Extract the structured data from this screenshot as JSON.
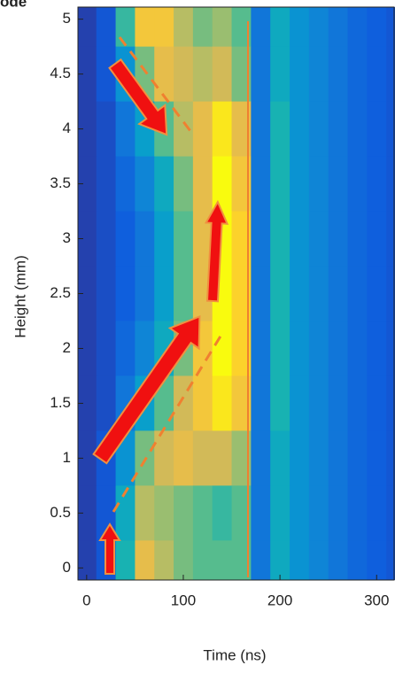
{
  "chart_data": {
    "type": "heatmap",
    "title": "ode",
    "xlabel": "Time (ns)",
    "ylabel": "Height (mm)",
    "x": [
      0,
      20,
      40,
      60,
      80,
      100,
      120,
      140,
      160,
      180,
      200,
      220,
      240,
      260,
      280,
      300,
      320
    ],
    "y": [
      5,
      4.5,
      4,
      3.5,
      3,
      2.5,
      2,
      1.5,
      1,
      0.5,
      0
    ],
    "z": [
      [
        0.05,
        0.1,
        0.5,
        0.85,
        0.85,
        0.7,
        0.6,
        0.65,
        0.55,
        0.2,
        0.4,
        0.3,
        0.25,
        0.2,
        0.15,
        0.12,
        0.1
      ],
      [
        0.05,
        0.1,
        0.3,
        0.6,
        0.8,
        0.75,
        0.7,
        0.75,
        0.6,
        0.2,
        0.4,
        0.3,
        0.25,
        0.2,
        0.15,
        0.12,
        0.1
      ],
      [
        0.05,
        0.08,
        0.2,
        0.35,
        0.55,
        0.7,
        0.8,
        0.95,
        0.8,
        0.2,
        0.45,
        0.3,
        0.25,
        0.2,
        0.15,
        0.12,
        0.1
      ],
      [
        0.05,
        0.08,
        0.15,
        0.25,
        0.4,
        0.6,
        0.8,
        1.0,
        0.85,
        0.2,
        0.45,
        0.3,
        0.25,
        0.2,
        0.15,
        0.12,
        0.1
      ],
      [
        0.05,
        0.08,
        0.12,
        0.2,
        0.35,
        0.55,
        0.8,
        1.0,
        0.9,
        0.2,
        0.45,
        0.3,
        0.25,
        0.2,
        0.15,
        0.12,
        0.1
      ],
      [
        0.05,
        0.08,
        0.12,
        0.2,
        0.35,
        0.55,
        0.8,
        1.0,
        0.9,
        0.2,
        0.45,
        0.3,
        0.25,
        0.2,
        0.15,
        0.12,
        0.1
      ],
      [
        0.05,
        0.08,
        0.15,
        0.25,
        0.4,
        0.6,
        0.85,
        1.0,
        0.9,
        0.2,
        0.45,
        0.3,
        0.25,
        0.2,
        0.15,
        0.12,
        0.1
      ],
      [
        0.05,
        0.08,
        0.2,
        0.35,
        0.55,
        0.75,
        0.85,
        0.95,
        0.85,
        0.2,
        0.45,
        0.3,
        0.25,
        0.2,
        0.15,
        0.12,
        0.1
      ],
      [
        0.05,
        0.1,
        0.3,
        0.6,
        0.75,
        0.8,
        0.75,
        0.75,
        0.65,
        0.2,
        0.4,
        0.3,
        0.25,
        0.2,
        0.15,
        0.12,
        0.1
      ],
      [
        0.05,
        0.1,
        0.4,
        0.7,
        0.65,
        0.6,
        0.55,
        0.5,
        0.55,
        0.2,
        0.4,
        0.3,
        0.25,
        0.2,
        0.15,
        0.12,
        0.1
      ],
      [
        0.05,
        0.1,
        0.45,
        0.8,
        0.7,
        0.6,
        0.55,
        0.55,
        0.55,
        0.2,
        0.4,
        0.3,
        0.25,
        0.2,
        0.15,
        0.12,
        0.1
      ]
    ],
    "colormap": "parula",
    "clim": [
      0,
      1
    ],
    "xlim": [
      -9,
      319
    ],
    "xticks": [
      0,
      100,
      200,
      300
    ],
    "ylim": [
      -0.11,
      5.11
    ],
    "yticks": [
      0,
      0.5,
      1,
      1.5,
      2,
      2.5,
      3,
      3.5,
      4,
      4.5,
      5
    ]
  }
}
